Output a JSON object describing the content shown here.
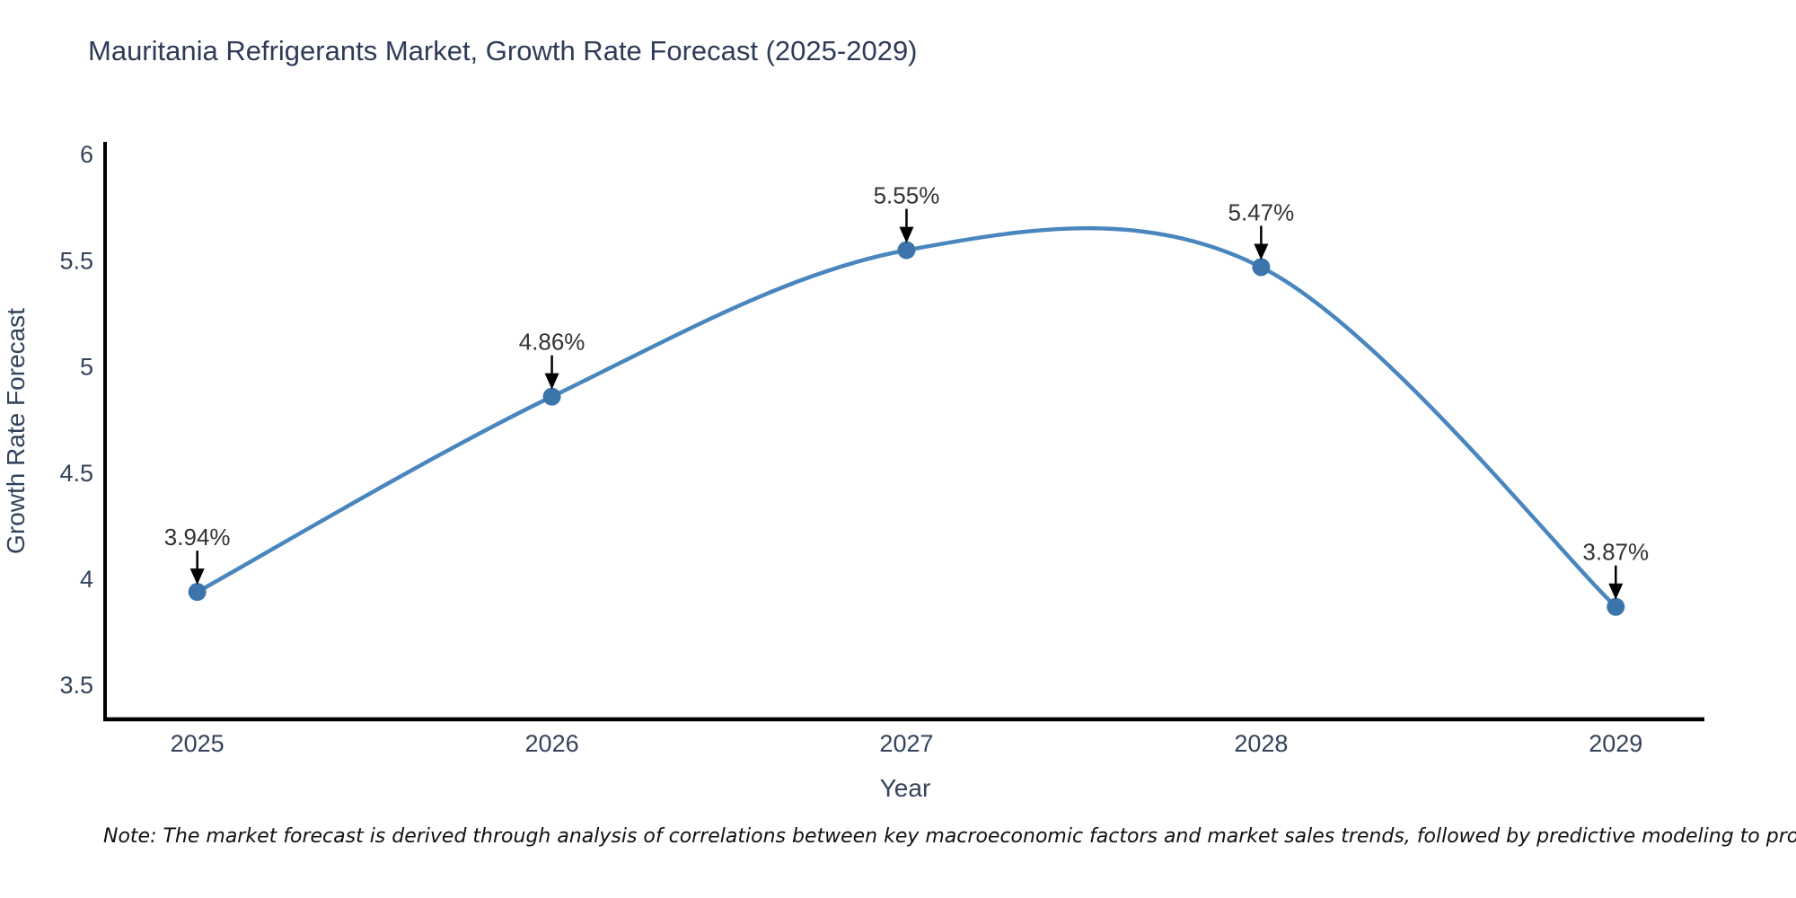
{
  "page": {
    "title": "Mauritania Refrigerants Market, Growth Rate Forecast (2025-2029)",
    "note": "Note: The market forecast is derived through analysis of correlations between key macroeconomic factors and market sales trends, followed by predictive modeling to project future sales."
  },
  "chart_data": {
    "type": "line",
    "title": "Mauritania Refrigerants Market, Growth Rate Forecast (2025-2029)",
    "xlabel": "Year",
    "ylabel": "Growth Rate Forecast",
    "x": [
      2025,
      2026,
      2027,
      2028,
      2029
    ],
    "x_tick_labels": [
      "2025",
      "2026",
      "2027",
      "2028",
      "2029"
    ],
    "series": [
      {
        "name": "Growth Rate Forecast",
        "values": [
          3.94,
          4.86,
          5.55,
          5.47,
          3.87
        ]
      }
    ],
    "point_labels": [
      "3.94%",
      "4.86%",
      "5.55%",
      "5.47%",
      "3.87%"
    ],
    "y_ticks": [
      3.5,
      4,
      4.5,
      5,
      5.5,
      6
    ],
    "ylim": [
      3.34,
      6.06
    ],
    "xlim": [
      2024.74,
      2029.25
    ],
    "line_shape": "spline",
    "grid": false,
    "legend": false,
    "colors": {
      "line": "#4a86be",
      "marker": "#3b75ab",
      "arrow": "#000000",
      "axis": "#000000",
      "title_text": "#2e3b57",
      "tick_text": "#33435c",
      "annotation_text": "#333333"
    }
  }
}
